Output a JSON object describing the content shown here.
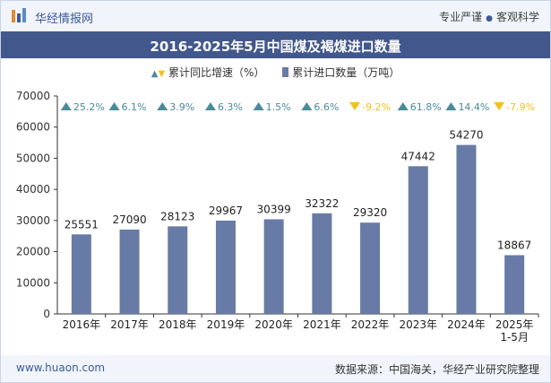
{
  "header": {
    "brand": "华经情报网",
    "tag1": "专业严谨",
    "tag2": "客观科学"
  },
  "title": "2016-2025年5月中国煤及褐煤进口数量",
  "legend": {
    "growth": "累计同比增速（%）",
    "volume": "累计进口数量（万吨）"
  },
  "footer": {
    "website": "www.huaon.com",
    "source": "数据来源：中国海关，华经产业研究院整理"
  },
  "colors": {
    "bar": "#687aa6",
    "up": "#4a8a9c",
    "down": "#f2c21a",
    "title_bg": "#42578b"
  },
  "chart_data": {
    "type": "bar",
    "title": "2016-2025年5月中国煤及褐煤进口数量",
    "categories": [
      "2016年",
      "2017年",
      "2018年",
      "2019年",
      "2020年",
      "2021年",
      "2022年",
      "2023年",
      "2024年",
      "2025年1-5月"
    ],
    "category_lines": [
      [
        "2016年"
      ],
      [
        "2017年"
      ],
      [
        "2018年"
      ],
      [
        "2019年"
      ],
      [
        "2020年"
      ],
      [
        "2021年"
      ],
      [
        "2022年"
      ],
      [
        "2023年"
      ],
      [
        "2024年"
      ],
      [
        "2025年",
        "1-5月"
      ]
    ],
    "series": [
      {
        "name": "累计进口数量（万吨）",
        "values": [
          25551,
          27090,
          28123,
          29967,
          30399,
          32322,
          29320,
          47442,
          54270,
          18867
        ]
      },
      {
        "name": "累计同比增速（%）",
        "values": [
          25.2,
          6.1,
          3.9,
          6.3,
          1.5,
          6.6,
          -9.2,
          61.8,
          14.4,
          -7.9
        ]
      }
    ],
    "growth_labels": [
      "25.2%",
      "6.1%",
      "3.9%",
      "6.3%",
      "1.5%",
      "6.6%",
      "-9.2%",
      "61.8%",
      "14.4%",
      "-7.9%"
    ],
    "yticks": [
      0,
      10000,
      20000,
      30000,
      40000,
      50000,
      60000,
      70000
    ],
    "ylim": [
      0,
      70000
    ],
    "grid": false,
    "legend_position": "top"
  }
}
